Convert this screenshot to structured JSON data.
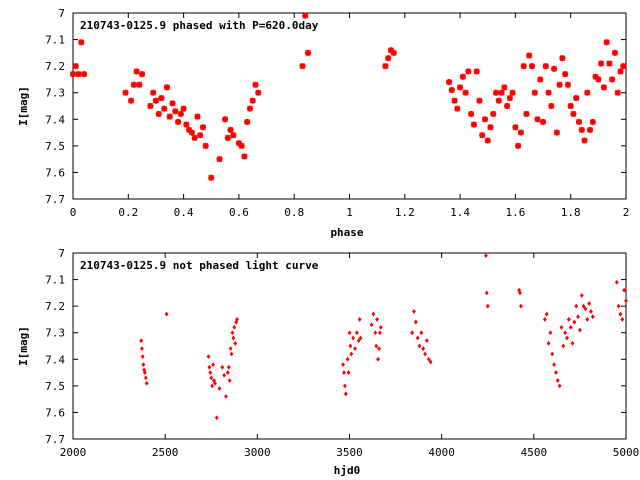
{
  "chart_data": [
    {
      "type": "scatter",
      "title": "210743-0125.9 phased with P=620.0day",
      "xlabel": "phase",
      "ylabel": "I[mag]",
      "xlim": [
        0,
        2
      ],
      "ylim": [
        7.7,
        7.0
      ],
      "y_inverted": true,
      "xticks": [
        "0",
        "0.2",
        "0.4",
        "0.6",
        "0.8",
        "1",
        "1.2",
        "1.4",
        "1.6",
        "1.8",
        "2"
      ],
      "yticks": [
        "7",
        "7.1",
        "7.2",
        "7.3",
        "7.4",
        "7.5",
        "7.6",
        "7.7"
      ],
      "marker_color": "#ff0000",
      "marker": "star",
      "x": [
        0.0,
        0.01,
        0.02,
        0.03,
        0.04,
        0.19,
        0.21,
        0.22,
        0.23,
        0.24,
        0.25,
        0.28,
        0.29,
        0.3,
        0.31,
        0.32,
        0.33,
        0.34,
        0.35,
        0.36,
        0.37,
        0.38,
        0.39,
        0.4,
        0.41,
        0.42,
        0.43,
        0.44,
        0.45,
        0.46,
        0.47,
        0.48,
        0.5,
        0.53,
        0.55,
        0.56,
        0.57,
        0.58,
        0.6,
        0.61,
        0.62,
        0.63,
        0.64,
        0.65,
        0.66,
        0.67,
        0.83,
        0.84,
        0.85,
        1.13,
        1.14,
        1.15,
        1.16,
        1.36,
        1.37,
        1.38,
        1.39,
        1.4,
        1.41,
        1.42,
        1.43,
        1.44,
        1.45,
        1.46,
        1.47,
        1.48,
        1.49,
        1.5,
        1.51,
        1.52,
        1.53,
        1.54,
        1.55,
        1.56,
        1.57,
        1.58,
        1.59,
        1.6,
        1.61,
        1.62,
        1.63,
        1.64,
        1.65,
        1.66,
        1.67,
        1.68,
        1.69,
        1.7,
        1.71,
        1.72,
        1.73,
        1.74,
        1.75,
        1.76,
        1.77,
        1.78,
        1.79,
        1.8,
        1.81,
        1.82,
        1.83,
        1.84,
        1.85,
        1.86,
        1.87,
        1.88,
        1.89,
        1.9,
        1.91,
        1.92,
        1.93,
        1.94,
        1.95,
        1.96,
        1.97,
        1.98,
        1.99
      ],
      "y": [
        7.23,
        7.2,
        7.23,
        7.11,
        7.23,
        7.3,
        7.33,
        7.27,
        7.22,
        7.27,
        7.23,
        7.35,
        7.3,
        7.33,
        7.38,
        7.32,
        7.36,
        7.28,
        7.39,
        7.34,
        7.37,
        7.41,
        7.38,
        7.36,
        7.42,
        7.44,
        7.45,
        7.47,
        7.39,
        7.46,
        7.43,
        7.5,
        7.62,
        7.55,
        7.4,
        7.47,
        7.44,
        7.46,
        7.49,
        7.5,
        7.54,
        7.41,
        7.36,
        7.33,
        7.27,
        7.3,
        7.2,
        7.01,
        7.15,
        7.2,
        7.17,
        7.14,
        7.15,
        7.26,
        7.29,
        7.33,
        7.36,
        7.28,
        7.24,
        7.3,
        7.22,
        7.38,
        7.42,
        7.22,
        7.33,
        7.46,
        7.4,
        7.48,
        7.43,
        7.38,
        7.3,
        7.33,
        7.3,
        7.28,
        7.35,
        7.32,
        7.3,
        7.43,
        7.5,
        7.45,
        7.2,
        7.38,
        7.16,
        7.2,
        7.3,
        7.4,
        7.25,
        7.41,
        7.2,
        7.3,
        7.35,
        7.21,
        7.45,
        7.27,
        7.17,
        7.23,
        7.27,
        7.35,
        7.38,
        7.32,
        7.41,
        7.44,
        7.48,
        7.3,
        7.44,
        7.41,
        7.24,
        7.25,
        7.19,
        7.28,
        7.11,
        7.19,
        7.25,
        7.15,
        7.3,
        7.22,
        7.2
      ]
    },
    {
      "type": "scatter",
      "title": "210743-0125.9 not phased light curve",
      "xlabel": "hjd0",
      "ylabel": "I[mag]",
      "xlim": [
        2000,
        5000
      ],
      "ylim": [
        7.7,
        7.0
      ],
      "y_inverted": true,
      "xticks": [
        "2000",
        "2500",
        "3000",
        "3500",
        "4000",
        "4500",
        "5000"
      ],
      "yticks": [
        "7",
        "7.1",
        "7.2",
        "7.3",
        "7.4",
        "7.5",
        "7.6",
        "7.7"
      ],
      "marker_color": "#ff0000",
      "marker": "diamond",
      "x": [
        2370,
        2374,
        2378,
        2382,
        2386,
        2390,
        2395,
        2400,
        2508,
        2735,
        2740,
        2745,
        2750,
        2755,
        2760,
        2765,
        2770,
        2780,
        2795,
        2810,
        2820,
        2830,
        2840,
        2845,
        2850,
        2855,
        2860,
        2865,
        2870,
        2875,
        2880,
        2885,
        2890,
        3465,
        3470,
        3475,
        3480,
        3490,
        3495,
        3500,
        3505,
        3510,
        3520,
        3530,
        3540,
        3550,
        3555,
        3560,
        3620,
        3630,
        3640,
        3645,
        3650,
        3655,
        3660,
        3665,
        3670,
        3840,
        3850,
        3860,
        3870,
        3880,
        3890,
        3900,
        3910,
        3920,
        3930,
        3940,
        4240,
        4245,
        4250,
        4420,
        4425,
        4430,
        4560,
        4570,
        4580,
        4590,
        4600,
        4610,
        4620,
        4630,
        4640,
        4650,
        4660,
        4670,
        4680,
        4690,
        4700,
        4710,
        4720,
        4730,
        4740,
        4750,
        4760,
        4770,
        4780,
        4790,
        4800,
        4810,
        4820,
        4950,
        4960,
        4970,
        4980,
        4990,
        5000
      ],
      "y": [
        7.33,
        7.36,
        7.39,
        7.42,
        7.44,
        7.45,
        7.47,
        7.49,
        7.23,
        7.39,
        7.43,
        7.45,
        7.47,
        7.5,
        7.42,
        7.48,
        7.49,
        7.62,
        7.51,
        7.43,
        7.46,
        7.54,
        7.45,
        7.43,
        7.48,
        7.36,
        7.38,
        7.3,
        7.32,
        7.28,
        7.34,
        7.26,
        7.25,
        7.42,
        7.45,
        7.5,
        7.53,
        7.4,
        7.45,
        7.3,
        7.35,
        7.38,
        7.32,
        7.36,
        7.3,
        7.33,
        7.25,
        7.32,
        7.27,
        7.23,
        7.3,
        7.35,
        7.25,
        7.4,
        7.36,
        7.3,
        7.28,
        7.3,
        7.22,
        7.26,
        7.32,
        7.35,
        7.3,
        7.36,
        7.38,
        7.33,
        7.4,
        7.41,
        7.01,
        7.15,
        7.2,
        7.14,
        7.15,
        7.2,
        7.25,
        7.23,
        7.34,
        7.3,
        7.38,
        7.42,
        7.45,
        7.48,
        7.5,
        7.28,
        7.35,
        7.3,
        7.32,
        7.25,
        7.28,
        7.34,
        7.26,
        7.2,
        7.24,
        7.29,
        7.16,
        7.2,
        7.21,
        7.25,
        7.19,
        7.22,
        7.24,
        7.11,
        7.2,
        7.23,
        7.25,
        7.14,
        7.18
      ]
    }
  ]
}
